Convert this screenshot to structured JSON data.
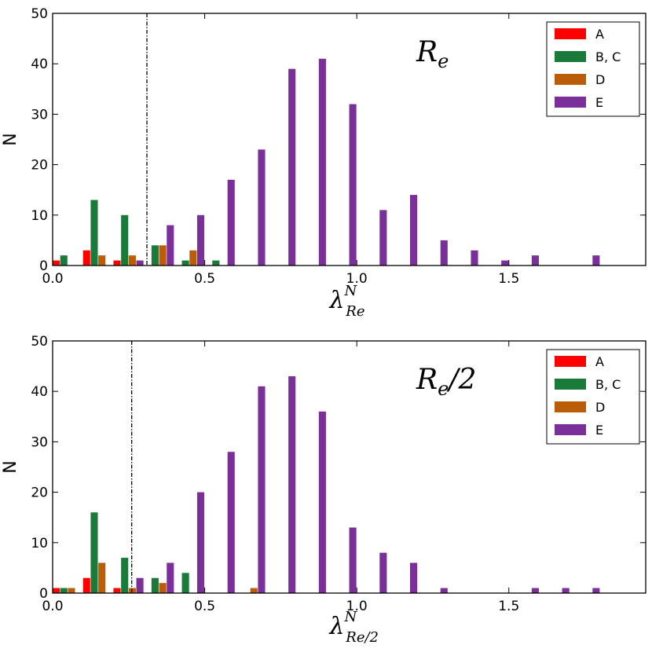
{
  "colors": {
    "A": "#ff0000",
    "B, C": "#1a7a3a",
    "D": "#bb5c09",
    "E": "#7b2f98"
  },
  "chart_data": [
    {
      "type": "bar",
      "annotation": "R_e",
      "annotation_display": {
        "main": "R",
        "sub": "e"
      },
      "xlabel": "λ_Re^N",
      "xlabel_display": {
        "base": "λ",
        "sup": "N",
        "sub": "Re"
      },
      "ylabel": "N",
      "xlim": [
        0.0,
        1.95
      ],
      "ylim": [
        0,
        50
      ],
      "xticks": [
        "0.0",
        "0.5",
        "1.0",
        "1.5"
      ],
      "yticks": [
        "0",
        "10",
        "20",
        "30",
        "40",
        "50"
      ],
      "threshold_x": 0.31,
      "legend_position": "top-right",
      "bin_width": 0.1,
      "series": [
        {
          "name": "A",
          "x": [
            0.0,
            0.1,
            0.2
          ],
          "values": [
            1,
            3,
            1
          ]
        },
        {
          "name": "B, C",
          "x": [
            0.0,
            0.1,
            0.2,
            0.3,
            0.4,
            0.5
          ],
          "values": [
            2,
            13,
            10,
            4,
            1,
            1
          ]
        },
        {
          "name": "D",
          "x": [
            0.1,
            0.2,
            0.3,
            0.4
          ],
          "values": [
            2,
            2,
            4,
            3
          ]
        },
        {
          "name": "E",
          "x": [
            0.2,
            0.3,
            0.4,
            0.5,
            0.6,
            0.7,
            0.8,
            0.9,
            1.0,
            1.1,
            1.2,
            1.3,
            1.4,
            1.5,
            1.7
          ],
          "values": [
            1,
            8,
            10,
            17,
            23,
            39,
            41,
            32,
            11,
            14,
            5,
            3,
            1,
            2,
            2
          ]
        }
      ]
    },
    {
      "type": "bar",
      "annotation": "R_e/2",
      "annotation_display": {
        "main": "R",
        "sub": "e",
        "tail": "/2"
      },
      "xlabel": "λ_Re/2^N",
      "xlabel_display": {
        "base": "λ",
        "sup": "N",
        "sub": "Re/2"
      },
      "ylabel": "N",
      "xlim": [
        0.0,
        1.95
      ],
      "ylim": [
        0,
        50
      ],
      "xticks": [
        "0.0",
        "0.5",
        "1.0",
        "1.5"
      ],
      "yticks": [
        "0",
        "10",
        "20",
        "30",
        "40",
        "50"
      ],
      "threshold_x": 0.26,
      "legend_position": "top-right",
      "bin_width": 0.1,
      "series": [
        {
          "name": "A",
          "x": [
            0.0,
            0.1,
            0.2
          ],
          "values": [
            1,
            3,
            1
          ]
        },
        {
          "name": "B, C",
          "x": [
            0.0,
            0.1,
            0.2,
            0.3,
            0.4
          ],
          "values": [
            1,
            16,
            7,
            3,
            4
          ]
        },
        {
          "name": "D",
          "x": [
            0.0,
            0.1,
            0.2,
            0.3,
            0.6
          ],
          "values": [
            1,
            6,
            1,
            2,
            1
          ]
        },
        {
          "name": "E",
          "x": [
            0.2,
            0.3,
            0.4,
            0.5,
            0.6,
            0.7,
            0.8,
            0.9,
            1.0,
            1.1,
            1.2,
            1.5,
            1.6,
            1.7
          ],
          "values": [
            3,
            6,
            20,
            28,
            41,
            43,
            36,
            13,
            8,
            6,
            1,
            1,
            1,
            1
          ]
        }
      ]
    }
  ]
}
